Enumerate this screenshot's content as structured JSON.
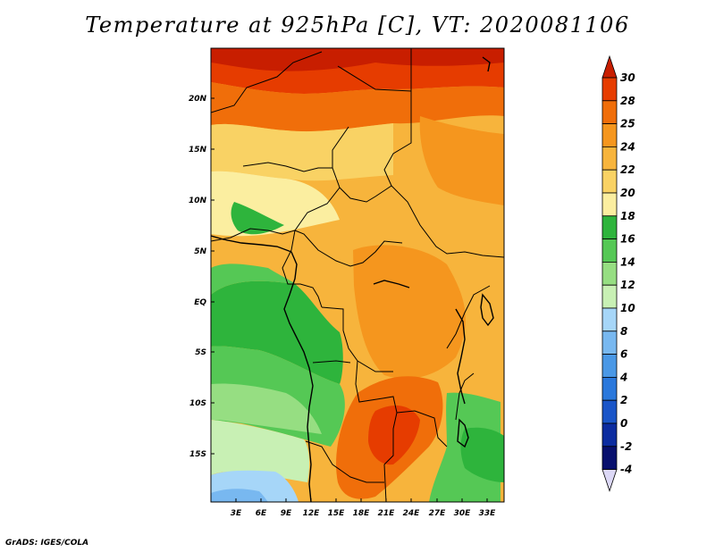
{
  "title": "Temperature at 925hPa [C], VT: 2020081106",
  "credit": "GrADS: IGES/COLA",
  "map": {
    "lat_labels": [
      "20N",
      "15N",
      "10N",
      "5N",
      "EQ",
      "5S",
      "10S",
      "15S"
    ],
    "lon_labels": [
      "3E",
      "6E",
      "9E",
      "12E",
      "15E",
      "18E",
      "21E",
      "24E",
      "27E",
      "30E",
      "33E"
    ]
  },
  "colorbar": {
    "levels": [
      "30",
      "28",
      "25",
      "24",
      "22",
      "20",
      "18",
      "16",
      "14",
      "12",
      "10",
      "8",
      "6",
      "4",
      "2",
      "0",
      "-2",
      "-4"
    ],
    "colors": [
      "#c81e00",
      "#e63c00",
      "#f06e0a",
      "#f5961e",
      "#f7b43c",
      "#f9d264",
      "#fbeea0",
      "#2eb43c",
      "#55c855",
      "#96de82",
      "#c8f0b4",
      "#a6d6f8",
      "#78b8f0",
      "#4a98e6",
      "#2a78dc",
      "#1a55c8",
      "#0c2ca0",
      "#08106e",
      "#dcd8f6"
    ]
  }
}
